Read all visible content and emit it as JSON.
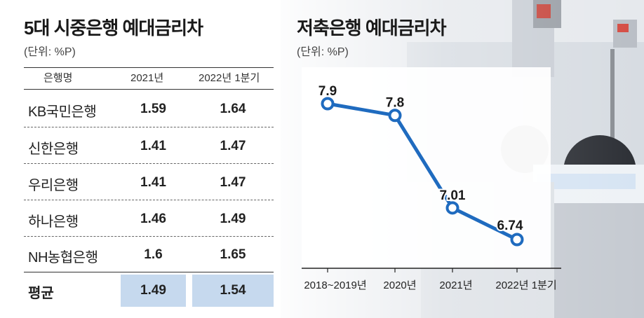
{
  "left_table": {
    "title": "5대 시중은행 예대금리차",
    "unit": "(단위: %P)",
    "headers": [
      "은행명",
      "2021년",
      "2022년 1분기"
    ],
    "rows": [
      {
        "bank": "KB국민은행",
        "y2021": "1.59",
        "y2022q1": "1.64"
      },
      {
        "bank": "신한은행",
        "y2021": "1.41",
        "y2022q1": "1.47"
      },
      {
        "bank": "우리은행",
        "y2021": "1.41",
        "y2022q1": "1.47"
      },
      {
        "bank": "하나은행",
        "y2021": "1.46",
        "y2022q1": "1.49"
      },
      {
        "bank": "NH농협은행",
        "y2021": "1.6",
        "y2022q1": "1.65"
      }
    ],
    "average": {
      "label": "평균",
      "y2021": "1.49",
      "y2022q1": "1.54"
    }
  },
  "right_chart": {
    "title": "저축은행 예대금리차",
    "unit": "(단위: %P)"
  },
  "colors": {
    "line": "#1f6bbf",
    "avg_bg": "#c6d9ee"
  },
  "chart_data": [
    {
      "type": "table",
      "title": "5대 시중은행 예대금리차",
      "columns": [
        "은행명",
        "2021년",
        "2022년 1분기"
      ],
      "rows": [
        [
          "KB국민은행",
          1.59,
          1.64
        ],
        [
          "신한은행",
          1.41,
          1.47
        ],
        [
          "우리은행",
          1.41,
          1.47
        ],
        [
          "하나은행",
          1.46,
          1.49
        ],
        [
          "NH농협은행",
          1.6,
          1.65
        ],
        [
          "평균",
          1.49,
          1.54
        ]
      ]
    },
    {
      "type": "line",
      "title": "저축은행 예대금리차",
      "categories": [
        "2018~2019년",
        "2020년",
        "2021년",
        "2022년 1분기"
      ],
      "values": [
        7.9,
        7.8,
        7.01,
        6.74
      ],
      "labels": [
        "7.9",
        "7.8",
        "7.01",
        "6.74"
      ],
      "ylim": [
        6.5,
        8.0
      ],
      "grid": false
    }
  ]
}
